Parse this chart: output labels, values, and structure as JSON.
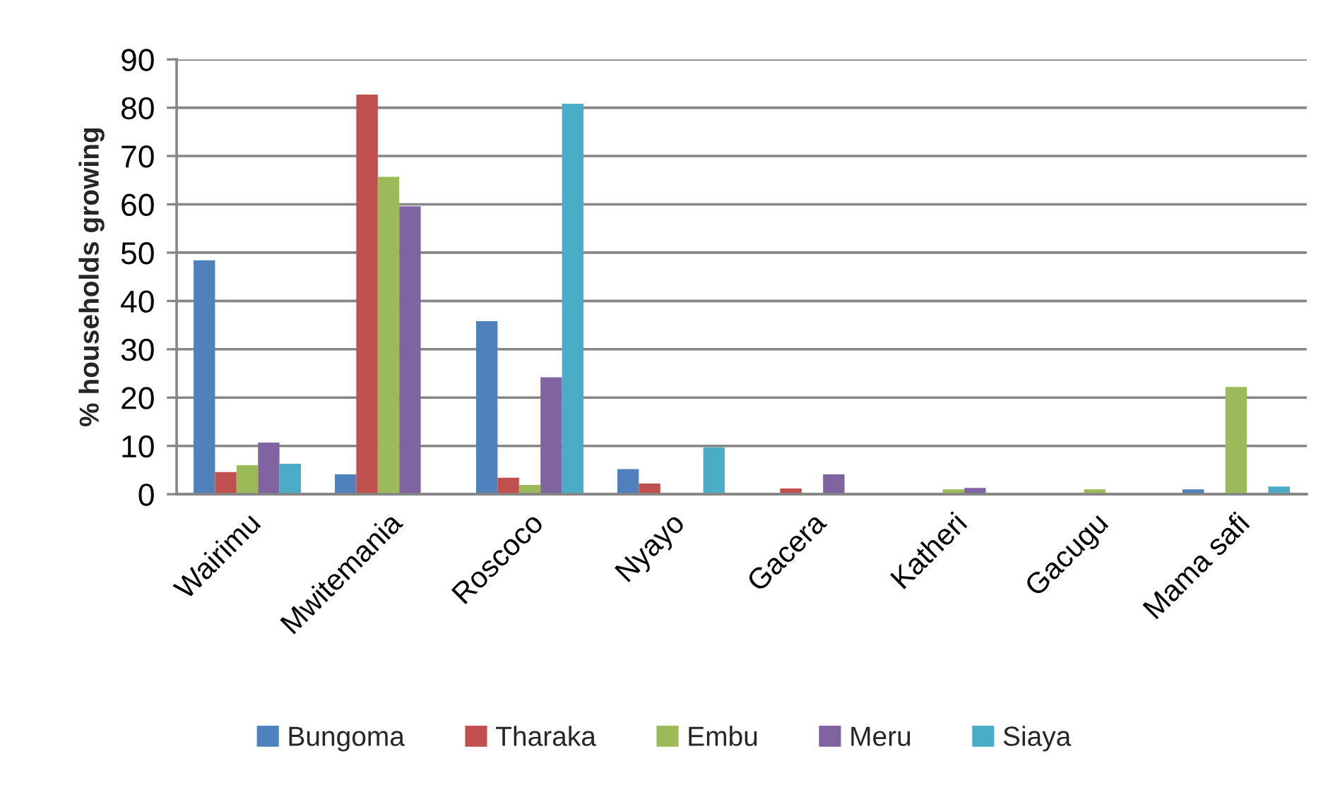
{
  "chart_data": {
    "type": "bar",
    "ylabel": "% households growing",
    "categories": [
      "Wairimu",
      "Mwitemania",
      "Roscoco",
      "Nyayo",
      "Gacera",
      "Katheri",
      "Gacugu",
      "Mama safi"
    ],
    "series": [
      {
        "name": "Bungoma",
        "color": "#4f81bd",
        "values": [
          48.4,
          4.1,
          35.8,
          5.2,
          0,
          0,
          0,
          1.0
        ]
      },
      {
        "name": "Tharaka",
        "color": "#c0504d",
        "values": [
          4.6,
          82.7,
          3.4,
          2.2,
          1.2,
          0,
          0,
          0
        ]
      },
      {
        "name": "Embu",
        "color": "#9bbb59",
        "values": [
          6.0,
          65.7,
          1.9,
          0,
          0,
          1.0,
          1.0,
          22.2
        ]
      },
      {
        "name": "Meru",
        "color": "#8064a2",
        "values": [
          10.7,
          59.6,
          24.2,
          0,
          4.1,
          1.3,
          0,
          0
        ]
      },
      {
        "name": "Siaya",
        "color": "#4bacc6",
        "values": [
          6.3,
          0,
          80.8,
          9.7,
          0,
          0,
          0,
          1.6
        ]
      }
    ],
    "ylim": [
      0,
      90
    ],
    "yticks": [
      0,
      10,
      20,
      30,
      40,
      50,
      60,
      70,
      80,
      90
    ],
    "grid": "y",
    "legend": "bottom"
  }
}
